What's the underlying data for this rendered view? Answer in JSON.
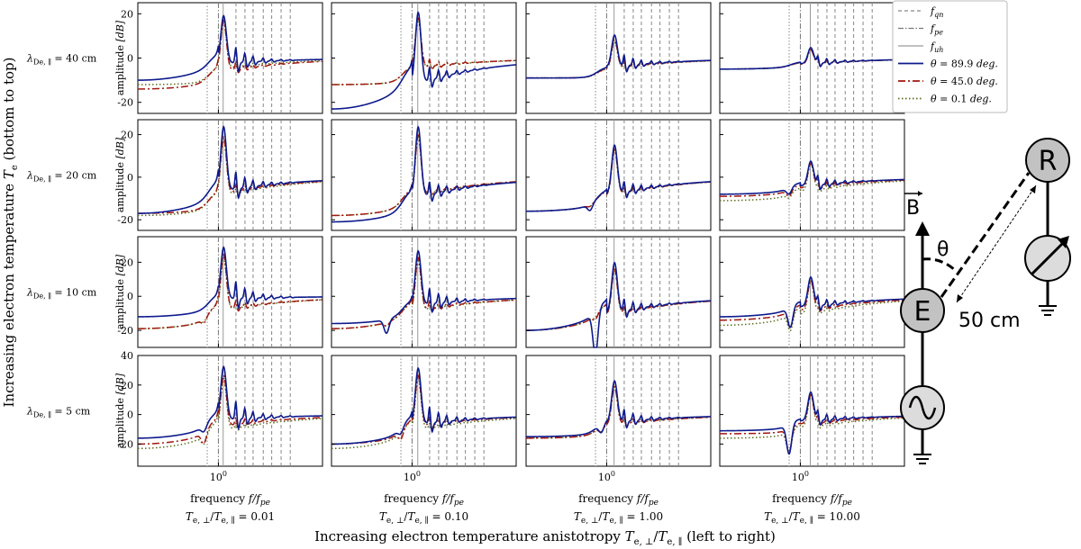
{
  "chart_data": {
    "type": "line",
    "title": "",
    "xlabel": "frequency f/f_pe",
    "ylabel": "amplitude [dB]",
    "x_scale": "log",
    "xlim": [
      0.2,
      8
    ],
    "x_tick_label": "10^0",
    "global_xlabel": "Increasing electron temperature anistotropy T_e,⊥/T_e,∥ (left to right)",
    "global_ylabel": "Increasing electron temperature T_e (bottom to top)",
    "col_labels": [
      "T_e,⊥/T_e,∥ = 0.01",
      "T_e,⊥/T_e,∥ = 0.10",
      "T_e,⊥/T_e,∥ = 1.00",
      "T_e,⊥/T_e,∥ = 10.00"
    ],
    "col_anisotropy": [
      0.01,
      0.1,
      1.0,
      10.0
    ],
    "row_labels": [
      "λ_De,∥ = 40 cm",
      "λ_De,∥ = 20 cm",
      "λ_De,∥ = 10 cm",
      "λ_De,∥ = 5 cm"
    ],
    "rows": [
      {
        "ylim": [
          -25,
          25
        ],
        "yticks": [
          -20,
          0,
          20
        ]
      },
      {
        "ylim": [
          -25,
          27
        ],
        "yticks": [
          -20,
          0,
          20
        ]
      },
      {
        "ylim": [
          -30,
          35
        ],
        "yticks": [
          -20,
          0,
          20
        ]
      },
      {
        "ylim": [
          -35,
          40
        ],
        "yticks": [
          -20,
          0,
          20,
          40
        ]
      }
    ],
    "reference_lines": {
      "f_pe": 1.0,
      "f_uh": [
        1.1,
        1.12,
        1.16,
        1.22
      ],
      "f_qn_first": [
        0.8,
        0.8,
        0.8,
        0.8
      ],
      "f_qn_harmonics": [
        1.42,
        1.7,
        2.0,
        2.45,
        2.9,
        3.5,
        4.2
      ]
    },
    "legend": {
      "placement": "upper-right outside",
      "entries": [
        "f_qn",
        "f_pe",
        "f_uh",
        "θ = 89.9 deg.",
        "θ = 45.0 deg.",
        "θ = 0.1 deg."
      ]
    },
    "series_styles": [
      {
        "name": "θ = 89.9 deg.",
        "color": "#0d1a8c",
        "dash": "solid"
      },
      {
        "name": "θ = 45.0 deg.",
        "color": "#a0180e",
        "dash": "dash-dot"
      },
      {
        "name": "θ = 0.1 deg.",
        "color": "#5a6e1e",
        "dash": "dotted"
      }
    ],
    "panels": [
      [
        {
          "peak": [
            20,
            18,
            17
          ],
          "low": [
            -10,
            -14,
            -12
          ],
          "mid": [
            -4,
            -11,
            -11
          ],
          "dip_f": 0,
          "dip_d": [
            0,
            0,
            0
          ],
          "harm": [
            7,
            3,
            2
          ]
        },
        {
          "peak": [
            22,
            19,
            18
          ],
          "low": [
            -23,
            -12,
            -12
          ],
          "mid": [
            -12,
            -11,
            -11
          ],
          "dip_f": 0,
          "dip_d": [
            0,
            0,
            0
          ],
          "harm": [
            6,
            3,
            2
          ]
        },
        {
          "peak": [
            11,
            9,
            8
          ],
          "low": [
            -9,
            -9,
            -9
          ],
          "mid": [
            -9,
            -9,
            -9
          ],
          "dip_f": 0,
          "dip_d": [
            0,
            0,
            0
          ],
          "harm": [
            5,
            3,
            2
          ]
        },
        {
          "peak": [
            5,
            4,
            4
          ],
          "low": [
            -5,
            -5,
            -5
          ],
          "mid": [
            -4,
            -4,
            -4
          ],
          "dip_f": 0,
          "dip_d": [
            0,
            0,
            0
          ],
          "harm": [
            3,
            2,
            2
          ]
        }
      ],
      [
        {
          "peak": [
            25,
            20,
            19
          ],
          "low": [
            -17,
            -17,
            -18
          ],
          "mid": [
            -10,
            -15,
            -15
          ],
          "dip_f": 0,
          "dip_d": [
            0,
            0,
            0
          ],
          "harm": [
            8,
            3,
            2
          ]
        },
        {
          "peak": [
            25,
            21,
            20
          ],
          "low": [
            -21,
            -18,
            -18
          ],
          "mid": [
            -16,
            -14,
            -14
          ],
          "dip_f": 0,
          "dip_d": [
            0,
            0,
            0
          ],
          "harm": [
            6,
            3,
            2
          ]
        },
        {
          "peak": [
            16,
            14,
            14
          ],
          "low": [
            -16,
            -16,
            -16
          ],
          "mid": [
            -13,
            -13,
            -13
          ],
          "dip_f": 0.72,
          "dip_d": [
            3,
            1,
            1
          ],
          "harm": [
            5,
            3,
            2
          ]
        },
        {
          "peak": [
            8,
            7,
            7
          ],
          "low": [
            -8,
            -9,
            -11
          ],
          "mid": [
            -6,
            -7,
            -9
          ],
          "dip_f": 0.8,
          "dip_d": [
            3,
            3,
            2
          ],
          "harm": [
            4,
            3,
            2
          ]
        }
      ],
      [
        {
          "peak": [
            30,
            26,
            24
          ],
          "low": [
            -12,
            -19,
            -19
          ],
          "mid": [
            -8,
            -14,
            -14
          ],
          "dip_f": 0.75,
          "dip_d": [
            0,
            3,
            2
          ],
          "harm": [
            10,
            4,
            3
          ]
        },
        {
          "peak": [
            28,
            24,
            22
          ],
          "low": [
            -16,
            -19,
            -19
          ],
          "mid": [
            -12,
            -12,
            -12
          ],
          "dip_f": 0.6,
          "dip_d": [
            8,
            2,
            2
          ],
          "harm": [
            9,
            4,
            3
          ]
        },
        {
          "peak": [
            21,
            17,
            17
          ],
          "low": [
            -20,
            -20,
            -20
          ],
          "mid": [
            -10,
            -12,
            -12
          ],
          "dip_f": 0.8,
          "dip_d": [
            26,
            3,
            2
          ],
          "harm": [
            7,
            3,
            2
          ]
        },
        {
          "peak": [
            12,
            10,
            10
          ],
          "low": [
            -12,
            -14,
            -17
          ],
          "mid": [
            -8,
            -10,
            -12
          ],
          "dip_f": 0.82,
          "dip_d": [
            12,
            10,
            10
          ],
          "harm": [
            5,
            3,
            2
          ]
        }
      ],
      [
        {
          "peak": [
            34,
            28,
            26
          ],
          "low": [
            -16,
            -20,
            -23
          ],
          "mid": [
            -8,
            -12,
            -14
          ],
          "dip_f": 0.75,
          "dip_d": [
            4,
            8,
            6
          ],
          "harm": [
            12,
            5,
            3
          ]
        },
        {
          "peak": [
            33,
            28,
            26
          ],
          "low": [
            -20,
            -20,
            -23
          ],
          "mid": [
            -12,
            -14,
            -14
          ],
          "dip_f": 0.8,
          "dip_d": [
            4,
            6,
            4
          ],
          "harm": [
            11,
            5,
            3
          ]
        },
        {
          "peak": [
            24,
            20,
            20
          ],
          "low": [
            -15,
            -16,
            -16
          ],
          "mid": [
            -13,
            -14,
            -14
          ],
          "dip_f": 0.9,
          "dip_d": [
            6,
            4,
            4
          ],
          "harm": [
            8,
            4,
            3
          ]
        },
        {
          "peak": [
            16,
            14,
            14
          ],
          "low": [
            -11,
            -13,
            -16
          ],
          "mid": [
            -9,
            -12,
            -14
          ],
          "dip_f": 0.8,
          "dip_d": [
            20,
            16,
            14
          ],
          "harm": [
            6,
            4,
            3
          ]
        }
      ]
    ]
  },
  "labels": {
    "legend_fqn": "f",
    "legend_fqn_sub": "qn",
    "legend_fpe": "f",
    "legend_fpe_sub": "pe",
    "legend_fuh": "f",
    "legend_fuh_sub": "uh",
    "legend_s1": "θ = 89.9 deg.",
    "legend_s2": "θ = 45.0 deg.",
    "legend_s3": "θ = 0.1 deg.",
    "ylabel_word": "amplitude ",
    "ylabel_unit": "[dB]",
    "xlabel_main": "frequency ",
    "xlabel_var": "f/f",
    "xlabel_sub": "pe",
    "xtick": "10",
    "xtick_exp": "0",
    "row_lambda": "λ",
    "row_sub": "De, ∥",
    "row_values": [
      " = 40 cm",
      " = 20 cm",
      " = 10 cm",
      " = 5 cm"
    ],
    "col_T": "T",
    "col_sub1": "e, ⊥",
    "col_sub2": "e, ∥",
    "col_values": [
      " = 0.01",
      " = 0.10",
      " = 1.00",
      " = 10.00"
    ],
    "global_xlabel_pre": "Increasing electron temperature anistotropy ",
    "global_xlabel_post": "  (left to right)",
    "global_ylabel_pre": "Increasing electron temperature ",
    "global_ylabel_post": " (bottom to top)",
    "global_ylabel_T": "T",
    "global_ylabel_sub": "e"
  },
  "schematic": {
    "b_label": "B",
    "theta_label": "θ",
    "distance_label": "50 cm",
    "emitter_label": "E",
    "receiver_label": "R"
  }
}
